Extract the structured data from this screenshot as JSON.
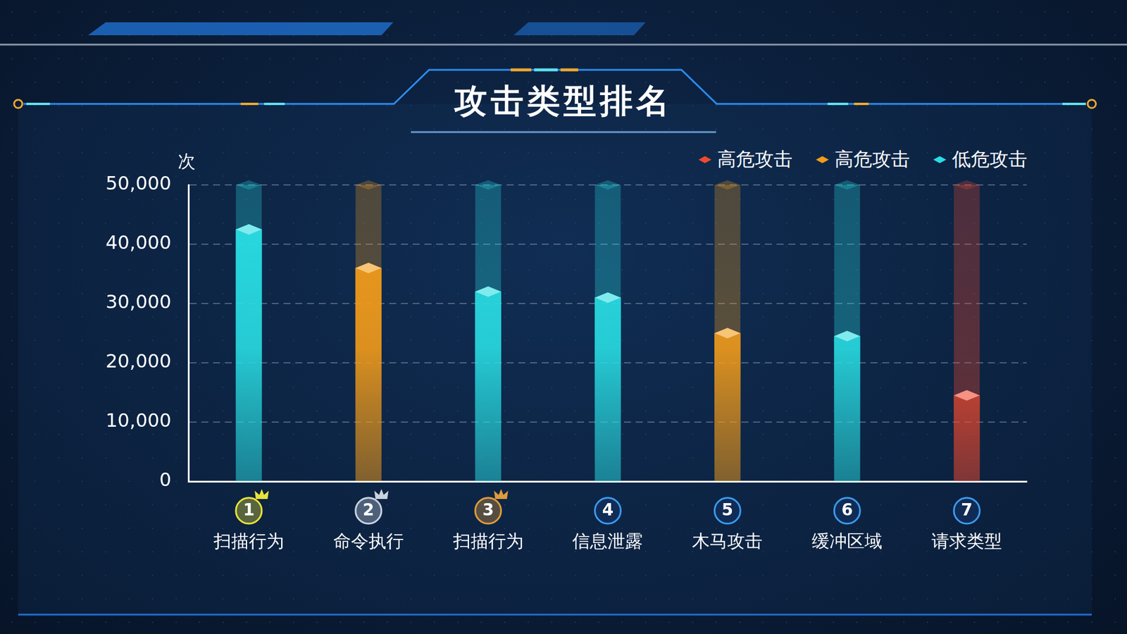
{
  "chart_data": {
    "type": "bar",
    "title": "攻击类型排名",
    "ylabel": "次",
    "categories": [
      "扫描行为",
      "命令执行",
      "扫描行为",
      "信息泄露",
      "木马攻击",
      "缓冲区域",
      "请求类型"
    ],
    "rank_labels": [
      "1",
      "2",
      "3",
      "4",
      "5",
      "6",
      "7"
    ],
    "series": [
      {
        "name": "高危攻击",
        "color": "#f04a2e",
        "values": [
          null,
          null,
          null,
          null,
          null,
          null,
          14500
        ]
      },
      {
        "name": "高危攻击",
        "color": "#f39c1a",
        "values": [
          null,
          36000,
          null,
          null,
          25000,
          null,
          null
        ]
      },
      {
        "name": "低危攻击",
        "color": "#29dde3",
        "values": [
          42500,
          null,
          32000,
          31000,
          null,
          24500,
          null
        ]
      }
    ],
    "ylim": [
      0,
      50000
    ],
    "yticks": [
      0,
      {
        "value": 10000,
        "label": "10,000"
      },
      {
        "value": 20000,
        "label": "20,000"
      },
      {
        "value": 30000,
        "label": "30,000"
      },
      {
        "value": 40000,
        "label": "40,000"
      },
      {
        "value": 50000,
        "label": "50,000"
      }
    ],
    "grid": true,
    "stacked": true,
    "legend": "upper right"
  }
}
